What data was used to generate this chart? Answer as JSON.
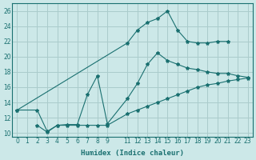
{
  "xlabel": "Humidex (Indice chaleur)",
  "bg_color": "#cce8e8",
  "grid_color": "#aacccc",
  "line_color": "#1a7070",
  "xlim": [
    -0.5,
    23.5
  ],
  "ylim": [
    9.5,
    27
  ],
  "yticks": [
    10,
    12,
    14,
    16,
    18,
    20,
    22,
    24,
    26
  ],
  "xticks": [
    0,
    1,
    2,
    3,
    4,
    5,
    6,
    7,
    8,
    9,
    11,
    12,
    13,
    14,
    15,
    16,
    17,
    18,
    19,
    20,
    21,
    22,
    23
  ],
  "line_top_x": [
    0,
    11,
    12,
    13,
    14,
    15,
    16,
    17,
    18,
    19,
    20,
    21
  ],
  "line_top_y": [
    13.0,
    21.8,
    23.5,
    24.5,
    25.0,
    26.0,
    23.5,
    22.0,
    21.8,
    21.8,
    22.0,
    22.0
  ],
  "line_mid_x": [
    0,
    2,
    3,
    4,
    5,
    6,
    7,
    8,
    9,
    11,
    12,
    13,
    14,
    15,
    16,
    17,
    18,
    19,
    20,
    21,
    22,
    23
  ],
  "line_mid_y": [
    13.0,
    13.0,
    10.2,
    11.0,
    11.1,
    11.1,
    15.0,
    17.5,
    11.2,
    14.5,
    16.5,
    19.0,
    20.5,
    19.5,
    19.0,
    18.5,
    18.3,
    18.0,
    17.8,
    17.8,
    17.5,
    17.3
  ],
  "line_bot_x": [
    2,
    3,
    4,
    5,
    6,
    7,
    8,
    9,
    11,
    12,
    13,
    14,
    15,
    16,
    17,
    18,
    19,
    20,
    21,
    22,
    23
  ],
  "line_bot_y": [
    11.0,
    10.1,
    11.0,
    11.0,
    11.0,
    11.0,
    11.0,
    11.0,
    12.5,
    13.0,
    13.5,
    14.0,
    14.5,
    15.0,
    15.5,
    16.0,
    16.3,
    16.5,
    16.8,
    17.0,
    17.2
  ]
}
